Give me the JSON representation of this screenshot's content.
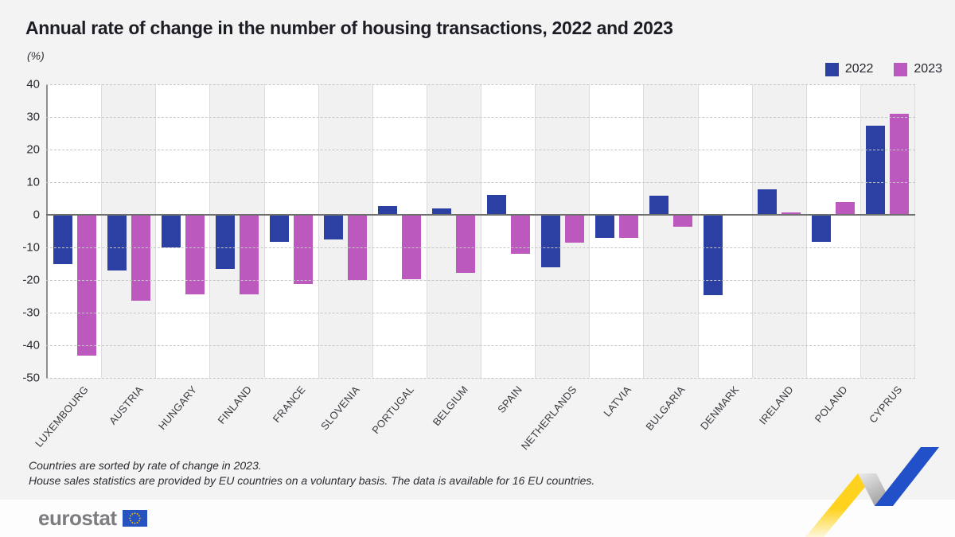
{
  "header": {
    "unit_label": "(%)"
  },
  "chart_data": {
    "type": "bar",
    "title": "Annual rate of change in the number of housing transactions, 2022 and 2023",
    "unit": "(%)",
    "categories": [
      "LUXEMBOURG",
      "AUSTRIA",
      "HUNGARY",
      "FINLAND",
      "FRANCE",
      "SLOVENIA",
      "PORTUGAL",
      "BELGIUM",
      "SPAIN",
      "NETHERLANDS",
      "LATVIA",
      "BULGARIA",
      "DENMARK",
      "IRELAND",
      "POLAND",
      "CYPRUS"
    ],
    "series": [
      {
        "name": "2022",
        "color": "#2c3fa3",
        "values": [
          -15,
          -17,
          -10,
          -16.5,
          -8.2,
          -7.6,
          2.8,
          1.9,
          6.1,
          -16,
          -7,
          5.9,
          -24.6,
          7.8,
          -8.3,
          27.3
        ]
      },
      {
        "name": "2023",
        "color": "#bb59be",
        "values": [
          -43.2,
          -26.4,
          -24.4,
          -24.3,
          -21.3,
          -20.1,
          -19.8,
          -17.9,
          -11.9,
          -8.5,
          -7,
          -3.7,
          0.3,
          0.7,
          4,
          31
        ]
      }
    ],
    "ylim": [
      -50,
      40
    ],
    "yticks": [
      40,
      30,
      20,
      10,
      0,
      -10,
      -20,
      -30,
      -40,
      -50
    ],
    "grid": "horizontal-dashed",
    "legend_position": "top-right",
    "band_colors": [
      "#ffffff",
      "#f0f1f0"
    ],
    "sorted_by": "rate of change in 2023"
  },
  "footnotes": {
    "lines": [
      "Countries are sorted by rate of change in 2023.",
      "House sales statistics are provided by EU countries on a voluntary basis. The data is available for 16 EU countries."
    ]
  },
  "footer": {
    "logo_text": "eurostat",
    "flag_blue": "#2653bf",
    "star_yellow": "#ffcc00"
  },
  "decor": {
    "zigzag_yellow": "#ffd21e",
    "zigzag_gray_top": "#ececec",
    "zigzag_gray_bottom": "#9e9e9e",
    "zigzag_blue": "#2150c8"
  }
}
